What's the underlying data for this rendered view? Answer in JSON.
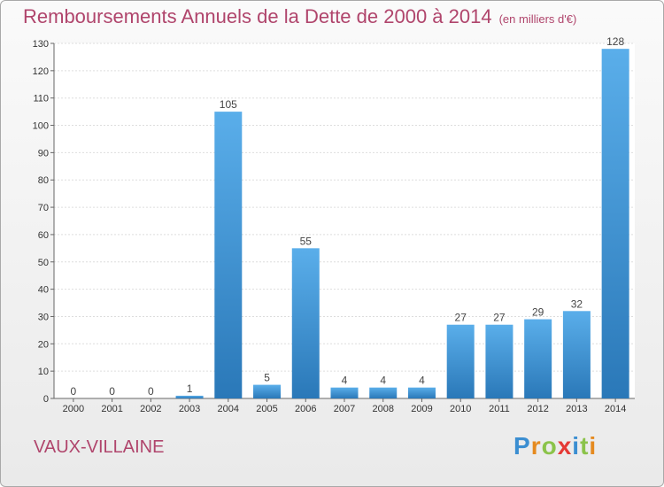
{
  "header": {
    "title": "Remboursements Annuels de la Dette de 2000 à 2014",
    "subtitle": "(en milliers d'€)"
  },
  "footer": {
    "commune": "VAUX-VILLAINE",
    "logo": "Proxiti",
    "logo_letters": [
      "P",
      "r",
      "o",
      "x",
      "i",
      "t",
      "i"
    ]
  },
  "colors": {
    "title": "#b0456c",
    "bar_light": "#5aaeea",
    "bar_dark": "#2a78b8",
    "grid": "#dddddd"
  },
  "chart_data": {
    "type": "bar",
    "title": "Remboursements Annuels de la Dette de 2000 à 2014",
    "subtitle": "(en milliers d'€)",
    "categories": [
      "2000",
      "2001",
      "2002",
      "2003",
      "2004",
      "2005",
      "2006",
      "2007",
      "2008",
      "2009",
      "2010",
      "2011",
      "2012",
      "2013",
      "2014"
    ],
    "values": [
      0,
      0,
      0,
      1,
      105,
      5,
      55,
      4,
      4,
      4,
      27,
      27,
      29,
      32,
      128
    ],
    "ylim": [
      0,
      130
    ],
    "yticks": [
      0,
      10,
      20,
      30,
      40,
      50,
      60,
      70,
      80,
      90,
      100,
      110,
      120,
      130
    ],
    "grid": true,
    "data_labels": true
  }
}
